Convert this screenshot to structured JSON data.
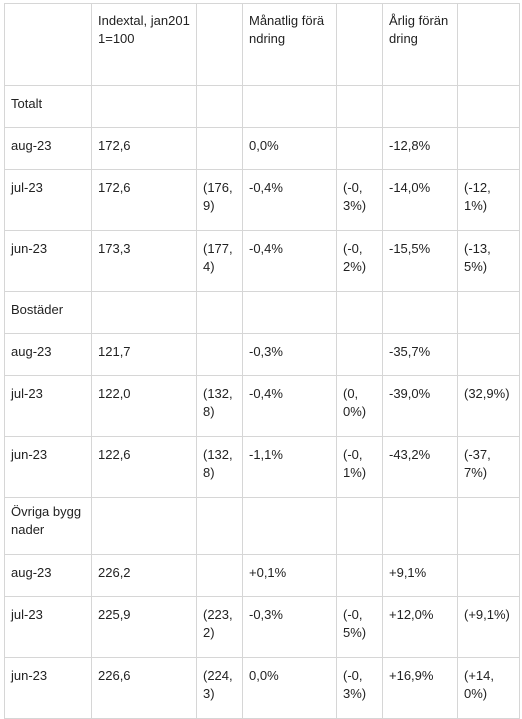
{
  "header": [
    "",
    "Indextal, jan2011=100",
    "",
    "Månatlig förändring",
    "",
    "Årlig förändring",
    ""
  ],
  "sections": [
    {
      "title": "Totalt",
      "rows": [
        [
          "aug-23",
          "172,6",
          "",
          "0,0%",
          "",
          "-12,8%",
          ""
        ],
        [
          "jul-23",
          "172,6",
          "(176,9)",
          "-0,4%",
          "(-0,3%)",
          "-14,0%",
          "(-12,1%)"
        ],
        [
          "jun-23",
          "173,3",
          "(177,4)",
          "-0,4%",
          "(-0,2%)",
          "-15,5%",
          "(-13,5%)"
        ]
      ]
    },
    {
      "title": "Bostäder",
      "rows": [
        [
          "aug-23",
          "121,7",
          "",
          "-0,3%",
          "",
          "-35,7%",
          ""
        ],
        [
          "jul-23",
          "122,0",
          "(132,8)",
          "-0,4%",
          "(0,0%)",
          "-39,0%",
          "(32,9%)"
        ],
        [
          "jun-23",
          "122,6",
          "(132,8)",
          "-1,1%",
          "(-0,1%)",
          "-43,2%",
          "(-37,7%)"
        ]
      ]
    },
    {
      "title": "Övriga byggnader",
      "rows": [
        [
          "aug-23",
          "226,2",
          "",
          "+0,1%",
          "",
          "+9,1%",
          ""
        ],
        [
          "jul-23",
          "225,9",
          "(223,2)",
          "-0,3%",
          "(-0,5%)",
          "+12,0%",
          "(+9,1%)"
        ],
        [
          "jun-23",
          "226,6",
          "(224,3)",
          "0,0%",
          "(-0,3%)",
          "+16,9%",
          "(+14,0%)"
        ]
      ]
    }
  ]
}
